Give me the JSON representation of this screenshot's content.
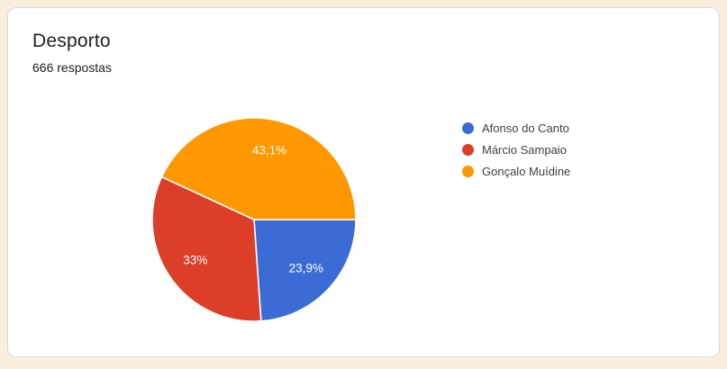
{
  "card": {
    "title": "Desporto",
    "responses_label": "666 respostas"
  },
  "chart_data": {
    "type": "pie",
    "title": "Desporto",
    "subtitle": "666 respostas",
    "legend_position": "right",
    "start_angle_deg": 0,
    "label_radius_ratio": 0.7,
    "slice_border_color": "#ffffff",
    "slices": [
      {
        "label": "Afonso do Canto",
        "percent": 23.9,
        "percent_label": "23,9%",
        "color": "#3b6bd5"
      },
      {
        "label": "Márcio Sampaio",
        "percent": 33,
        "percent_label": "33%",
        "color": "#dc3e27"
      },
      {
        "label": "Gonçalo Muídine",
        "percent": 43.1,
        "percent_label": "43,1%",
        "color": "#ff9800"
      }
    ]
  }
}
